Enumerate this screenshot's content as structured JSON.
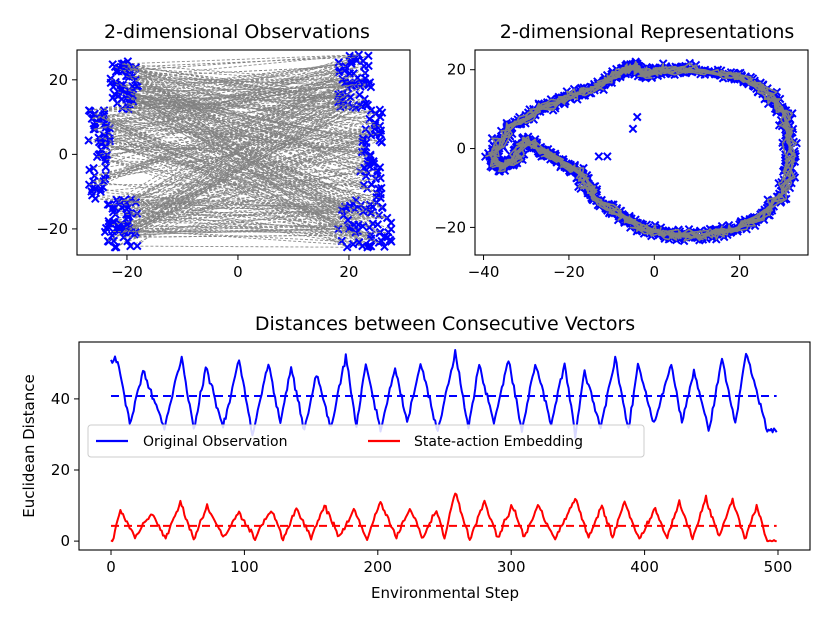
{
  "chart_data": [
    {
      "type": "scatter",
      "title": "2-dimensional Observations",
      "xlabel": "",
      "ylabel": "",
      "xlim": [
        -29,
        31
      ],
      "ylim": [
        -27,
        28
      ],
      "xticks": [
        -20,
        0,
        20
      ],
      "xtick_labels": [
        "−20",
        "0",
        "20"
      ],
      "yticks": [
        -20,
        0,
        20
      ],
      "ytick_labels": [
        "−20",
        "0",
        "20"
      ],
      "marker_color": "#0000ff",
      "line_color": "#808080",
      "clusters": [
        {
          "name": "upper-left",
          "x": [
            -23,
            -18
          ],
          "y": [
            12,
            25
          ]
        },
        {
          "name": "lower-left",
          "x": [
            -24,
            -18
          ],
          "y": [
            -25,
            -12
          ]
        },
        {
          "name": "left-middle",
          "x": [
            -27,
            -23
          ],
          "y": [
            -12,
            12
          ]
        },
        {
          "name": "upper-right",
          "x": [
            18,
            24
          ],
          "y": [
            12,
            27
          ]
        },
        {
          "name": "lower-right",
          "x": [
            18,
            28
          ],
          "y": [
            -25,
            -12
          ]
        },
        {
          "name": "right-middle",
          "x": [
            22,
            26
          ],
          "y": [
            -12,
            12
          ]
        }
      ]
    },
    {
      "type": "scatter",
      "title": "2-dimensional Representations",
      "xlabel": "",
      "ylabel": "",
      "xlim": [
        -42,
        36
      ],
      "ylim": [
        -27,
        25
      ],
      "xticks": [
        -40,
        -20,
        0,
        20
      ],
      "xtick_labels": [
        "−40",
        "−20",
        "0",
        "20"
      ],
      "yticks": [
        -20,
        0,
        20
      ],
      "ytick_labels": [
        "−20",
        "0",
        "20"
      ],
      "marker_color": "#0000ff",
      "line_color": "#808080",
      "loop_x": [
        -38,
        -34,
        -27,
        -20,
        -13,
        -7,
        -5,
        -3,
        2,
        10,
        20,
        27,
        31,
        32,
        30,
        24,
        17,
        10,
        3,
        -3,
        -8,
        -14,
        -17,
        -22,
        -26,
        -30,
        -33,
        -36,
        -38
      ],
      "loop_y": [
        -2,
        5,
        10,
        13,
        16,
        20,
        21,
        19,
        20,
        20,
        18,
        14,
        7,
        -3,
        -12,
        -18,
        -21,
        -22,
        -22,
        -20,
        -17,
        -12,
        -7,
        -3,
        -1,
        2,
        -3,
        -5,
        -2
      ],
      "outliers_x": [
        -5,
        -4,
        -11,
        -13
      ],
      "outliers_y": [
        5,
        8,
        -2,
        -2
      ]
    },
    {
      "type": "line",
      "title": "Distances between Consecutive Vectors",
      "xlabel": "Environmental Step",
      "ylabel": "Euclidean Distance",
      "xlim": [
        -24,
        524
      ],
      "ylim": [
        -2.5,
        56
      ],
      "xticks": [
        0,
        100,
        200,
        300,
        400,
        500
      ],
      "xtick_labels": [
        "0",
        "100",
        "200",
        "300",
        "400",
        "500"
      ],
      "yticks": [
        0,
        20,
        40
      ],
      "ytick_labels": [
        "0",
        "20",
        "40"
      ],
      "n_steps": 500,
      "series": [
        {
          "name": "Original Observation",
          "color": "#0000ff",
          "mean": 40.8,
          "peak_x": [
            5,
            24,
            53,
            71,
            96,
            118,
            135,
            154,
            176,
            191,
            213,
            232,
            258,
            276,
            298,
            318,
            340,
            355,
            378,
            395,
            420,
            437,
            458,
            476
          ],
          "peak_y": [
            51,
            48,
            52,
            49,
            51,
            50,
            49,
            47,
            52,
            50,
            49,
            50,
            53,
            50,
            51,
            50,
            50,
            48,
            51,
            50,
            50,
            48,
            51,
            53
          ],
          "trough_x": [
            14,
            40,
            62,
            84,
            106,
            127,
            145,
            165,
            184,
            202,
            222,
            245,
            268,
            287,
            308,
            330,
            348,
            367,
            388,
            407,
            428,
            448,
            468,
            492
          ],
          "trough_y": [
            33,
            32,
            31,
            32,
            30,
            33,
            31,
            32,
            32,
            31,
            33,
            31,
            32,
            33,
            31,
            33,
            30,
            32,
            31,
            33,
            33,
            31,
            33,
            31
          ]
        },
        {
          "name": "State-action Embedding",
          "color": "#ff0000",
          "mean": 4.3,
          "peak_x": [
            7,
            30,
            52,
            72,
            96,
            120,
            139,
            160,
            182,
            202,
            224,
            244,
            258,
            280,
            301,
            320,
            348,
            368,
            385,
            408,
            426,
            446,
            466,
            484
          ],
          "peak_y": [
            9,
            8,
            11,
            10,
            8,
            9,
            9,
            10,
            9,
            11,
            9,
            9,
            14,
            11,
            10,
            10,
            12,
            10,
            11,
            9,
            11,
            12,
            12,
            10
          ],
          "trough_x": [
            1,
            18,
            41,
            62,
            84,
            108,
            129,
            150,
            171,
            192,
            214,
            234,
            250,
            269,
            290,
            310,
            333,
            358,
            376,
            396,
            417,
            436,
            456,
            475,
            492
          ],
          "trough_y": [
            0,
            1,
            1,
            0.5,
            1,
            1,
            0.5,
            1,
            1,
            0.5,
            1,
            1,
            1,
            0.5,
            1,
            1,
            0.5,
            1,
            1,
            0.5,
            1,
            1,
            1,
            0.5,
            0
          ]
        }
      ],
      "legend": [
        "Original Observation",
        "State-action Embedding"
      ]
    }
  ]
}
